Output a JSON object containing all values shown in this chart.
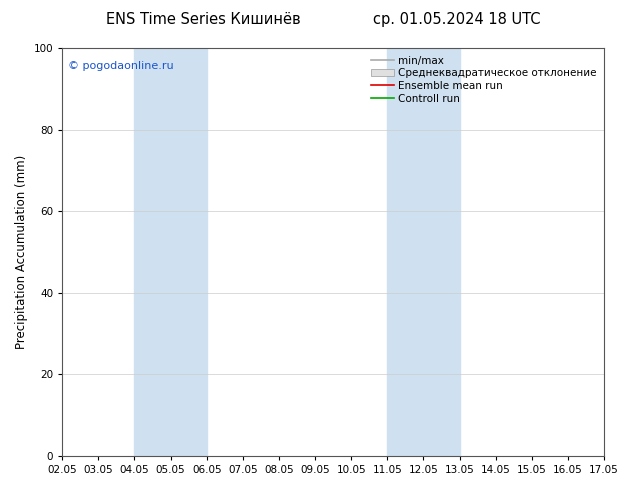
{
  "title_left": "ENS Time Series Кишинёв",
  "title_right": "ср. 01.05.2024 18 UTC",
  "ylabel": "Precipitation Accumulation (mm)",
  "watermark": "© pogodaonline.ru",
  "ylim": [
    0,
    100
  ],
  "yticks": [
    0,
    20,
    40,
    60,
    80,
    100
  ],
  "x_labels": [
    "02.05",
    "03.05",
    "04.05",
    "05.05",
    "06.05",
    "07.05",
    "08.05",
    "09.05",
    "10.05",
    "11.05",
    "12.05",
    "13.05",
    "14.05",
    "15.05",
    "16.05",
    "17.05"
  ],
  "shaded_regions": [
    {
      "xstart": 2,
      "xend": 4,
      "color": "#cfe0f0"
    },
    {
      "xstart": 9,
      "xend": 11,
      "color": "#cfe0f0"
    }
  ],
  "legend_entries": [
    {
      "label": "min/max",
      "color": "#aaaaaa",
      "type": "line"
    },
    {
      "label": "Среднеквадратическое отклонение",
      "color": "#cccccc",
      "type": "band"
    },
    {
      "label": "Ensemble mean run",
      "color": "#dd0000",
      "type": "line"
    },
    {
      "label": "Controll run",
      "color": "#00aa00",
      "type": "line"
    }
  ],
  "background_color": "#ffffff",
  "grid_color": "#cccccc",
  "title_fontsize": 10.5,
  "tick_fontsize": 7.5,
  "ylabel_fontsize": 8.5,
  "watermark_fontsize": 8,
  "legend_fontsize": 7.5
}
